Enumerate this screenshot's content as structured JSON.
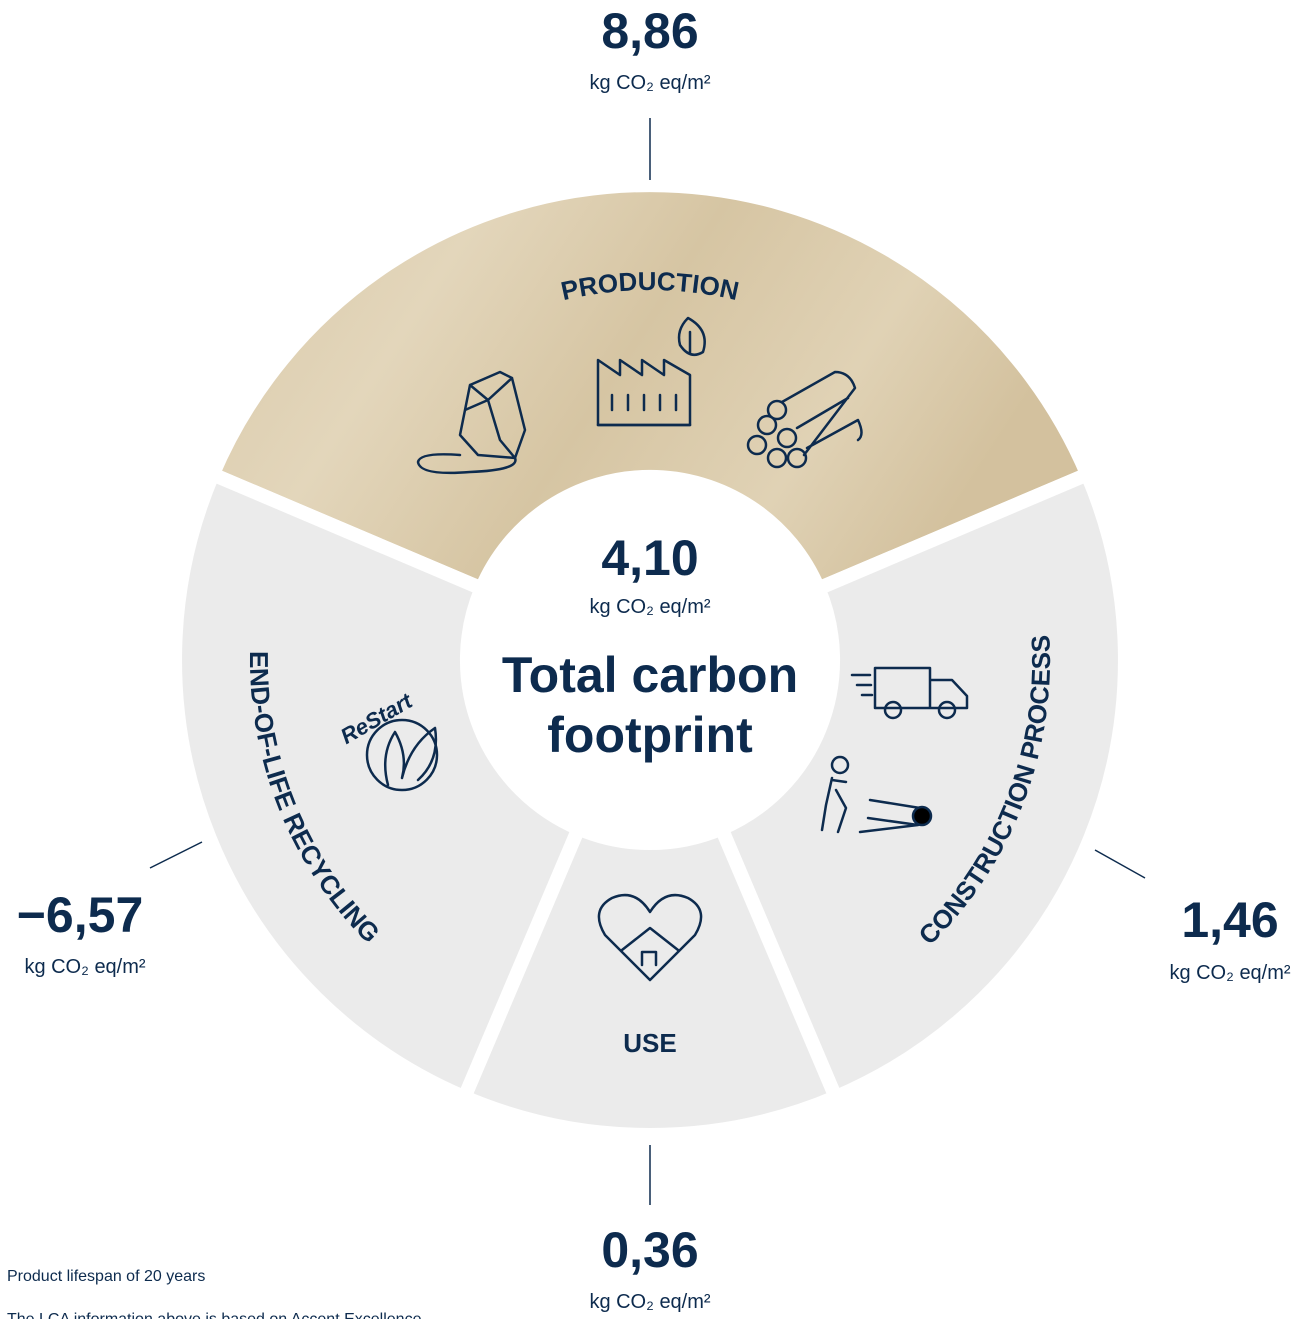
{
  "segments": [
    {
      "label": "PRODUCTION",
      "value": "8,86",
      "unit": "kg CO₂ eq/m²"
    },
    {
      "label": "CONSTRUCTION PROCESS",
      "value": "1,46",
      "unit": "kg CO₂ eq/m²"
    },
    {
      "label": "USE",
      "value": "0,36",
      "unit": "kg CO₂ eq/m²"
    },
    {
      "label": "END-OF-LIFE RECYCLING",
      "value": "−6,57",
      "unit": "kg CO₂ eq/m²"
    }
  ],
  "center": {
    "value": "4,10",
    "unit": "kg CO₂ eq/m²",
    "title_line1": "Total carbon",
    "title_line2": "footprint"
  },
  "icons": {
    "restart": "ReStart"
  },
  "footnotes": [
    "Product lifespan of 20 years",
    "The LCA information above is based on Accent Excellence"
  ]
}
